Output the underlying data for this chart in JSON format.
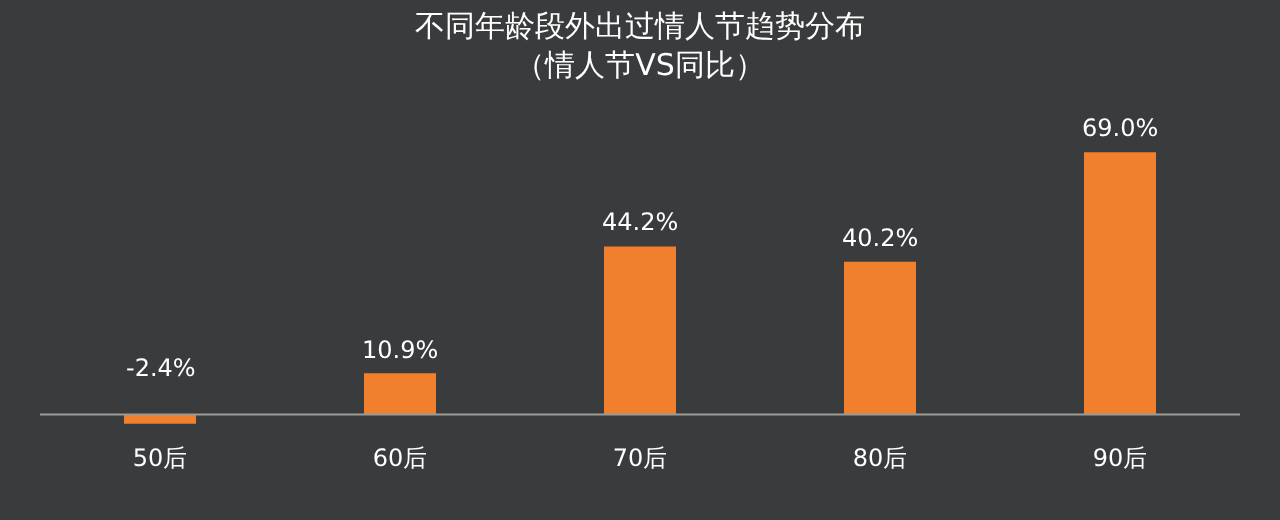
{
  "chart_data": {
    "type": "bar",
    "title": "不同年龄段外出过情人节趋势分布",
    "subtitle": "（情人节VS同比）",
    "categories": [
      "50后",
      "60后",
      "70后",
      "80后",
      "90后"
    ],
    "values": [
      -2.4,
      10.9,
      44.2,
      40.2,
      69.0
    ],
    "value_labels": [
      "-2.4%",
      "10.9%",
      "44.2%",
      "40.2%",
      "69.0%"
    ],
    "color": "#f07f2e",
    "grid": false,
    "legend": false
  }
}
